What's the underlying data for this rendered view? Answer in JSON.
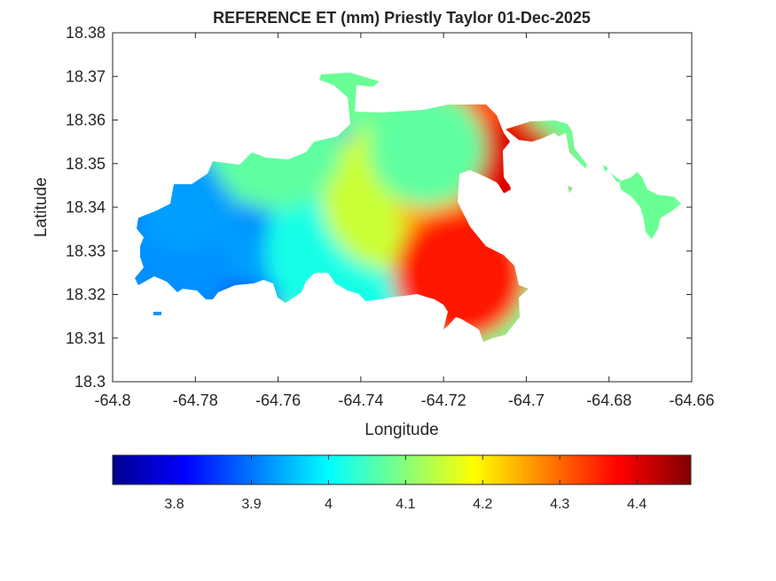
{
  "chart_data": {
    "type": "heatmap",
    "title": "REFERENCE ET (mm) Priestly Taylor 01-Dec-2025",
    "xlabel": "Longitude",
    "ylabel": "Latitude",
    "xlim": [
      -64.8,
      -64.66
    ],
    "ylim": [
      18.3,
      18.38
    ],
    "xticks": [
      "-64.8",
      "-64.78",
      "-64.76",
      "-64.74",
      "-64.72",
      "-64.7",
      "-64.68",
      "-64.66"
    ],
    "yticks": [
      "18.3",
      "18.31",
      "18.32",
      "18.33",
      "18.34",
      "18.35",
      "18.36",
      "18.37",
      "18.38"
    ],
    "colormap": "jet",
    "clim": [
      3.72,
      4.47
    ],
    "colorbar_ticks": [
      "3.8",
      "3.9",
      "4",
      "4.1",
      "4.2",
      "4.3",
      "4.4"
    ],
    "colorbar_location": "southoutside",
    "blobs": [
      {
        "lon": -64.776,
        "lat": 18.3355,
        "value": 3.85,
        "radius": 0.025
      },
      {
        "lon": -64.7635,
        "lat": 18.3425,
        "value": 3.93,
        "radius": 0.022
      },
      {
        "lon": -64.753,
        "lat": 18.3435,
        "value": 3.92,
        "radius": 0.018
      },
      {
        "lon": -64.741,
        "lat": 18.3305,
        "value": 4.02,
        "radius": 0.022
      },
      {
        "lon": -64.7745,
        "lat": 18.3535,
        "value": 4.08,
        "radius": 0.014
      },
      {
        "lon": -64.7315,
        "lat": 18.3425,
        "value": 4.15,
        "radius": 0.018
      },
      {
        "lon": -64.716,
        "lat": 18.3405,
        "value": 4.24,
        "radius": 0.015
      },
      {
        "lon": -64.716,
        "lat": 18.3245,
        "value": 4.36,
        "radius": 0.016
      },
      {
        "lon": -64.713,
        "lat": 18.3575,
        "value": 4.32,
        "radius": 0.014
      },
      {
        "lon": -64.7035,
        "lat": 18.3475,
        "value": 4.4,
        "radius": 0.013
      },
      {
        "lon": -64.7865,
        "lat": 18.3255,
        "value": 3.92,
        "radius": 0.015
      },
      {
        "lon": -64.7825,
        "lat": 18.3405,
        "value": 3.93,
        "radius": 0.012
      },
      {
        "lon": -64.7605,
        "lat": 18.3545,
        "value": 4.07,
        "radius": 0.016
      },
      {
        "lon": -64.724,
        "lat": 18.3535,
        "value": 4.07,
        "radius": 0.014
      }
    ]
  }
}
